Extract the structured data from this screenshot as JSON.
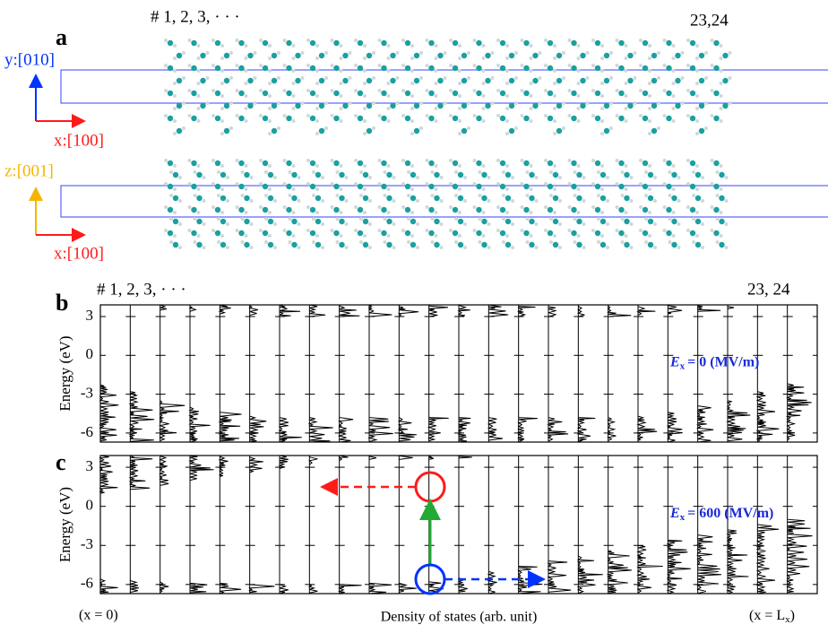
{
  "panel_a": {
    "label": "a",
    "layers_first": "# 1, 2, 3,  ·  ·  ·",
    "layers_last": "23,24",
    "top_view": {
      "vertical_axis": "y:[010]",
      "horizontal_axis": "x:[100]"
    },
    "side_view": {
      "vertical_axis": "z:[001]",
      "horizontal_axis": "x:[100]"
    }
  },
  "chart_data": [
    {
      "type": "dos",
      "panel_label": "b",
      "layers_first": "# 1,  2,  3,    ·   ·   ·",
      "layers_last": "23, 24",
      "ylabel": "Energy (eV)",
      "ylim": [
        -6.7,
        3.9
      ],
      "yticks": [
        -6,
        -3,
        0,
        3
      ],
      "field": {
        "symbol": "E",
        "subscript": "x",
        "text": "=     0 (MV/m)"
      },
      "series": [
        {
          "color": "#000000",
          "values": [
            -2.3,
            -2.8,
            -3.5,
            -4.0,
            -4.4,
            -4.7,
            -4.8,
            -4.8,
            -4.8,
            -4.8,
            -4.8,
            -4.8,
            -4.8,
            -4.8,
            -4.8,
            -4.8,
            -4.8,
            -4.8,
            -4.7,
            -4.4,
            -3.9,
            -3.5,
            -2.8,
            -2.2
          ]
        },
        {
          "color": "#000000",
          "values": [
            null,
            null,
            3.5,
            3.4,
            3.2,
            3.1,
            3.0,
            3.0,
            3.0,
            3.0,
            3.0,
            3.0,
            3.0,
            3.0,
            3.0,
            3.0,
            3.0,
            3.0,
            3.1,
            3.2,
            3.4,
            3.6,
            null,
            null
          ]
        }
      ]
    },
    {
      "type": "dos",
      "panel_label": "c",
      "ylabel": "Energy (eV)",
      "ylim": [
        -6.7,
        3.9
      ],
      "yticks": [
        -6,
        -3,
        0,
        3
      ],
      "field": {
        "symbol": "E",
        "subscript": "x",
        "text": "= 600 (MV/m)"
      },
      "series": [
        {
          "color": "#000000",
          "values": [
            -5.6,
            -5.7,
            -5.8,
            -5.9,
            -5.9,
            -6.0,
            -6.0,
            -6.0,
            -6.0,
            -5.9,
            -5.9,
            -5.8,
            -5.5,
            -5.0,
            -4.6,
            -4.2,
            -3.8,
            -3.4,
            -3.0,
            -2.6,
            -2.2,
            -1.8,
            -1.4,
            -1.0
          ]
        },
        {
          "color": "#000000",
          "values": [
            1.0,
            1.3,
            1.6,
            2.0,
            2.3,
            2.6,
            2.9,
            3.2,
            3.5,
            3.6,
            3.6,
            3.6,
            3.7,
            null,
            null,
            null,
            null,
            null,
            null,
            null,
            null,
            null,
            null,
            null
          ]
        }
      ]
    }
  ],
  "footer": {
    "left": "(x = 0)",
    "center": "Density of states (arb. unit)",
    "right": {
      "text": "(x = L",
      "subscript": "x",
      "close": ")"
    }
  }
}
